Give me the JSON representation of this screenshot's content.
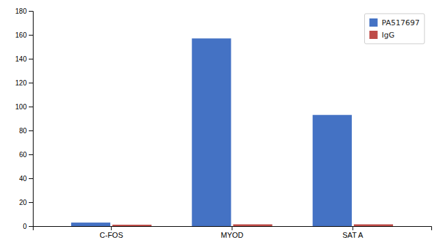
{
  "chart_data": {
    "type": "bar",
    "categories": [
      "C-FOS",
      "MYOD",
      "SAT A"
    ],
    "series": [
      {
        "name": "PA517697",
        "color": "#4472C4",
        "values": [
          3.0,
          157.0,
          93.0
        ]
      },
      {
        "name": "IgG",
        "color": "#BE4B48",
        "values": [
          1.2,
          1.5,
          1.5
        ]
      }
    ],
    "ylim": [
      0,
      180
    ],
    "yticks": [
      0,
      20,
      40,
      60,
      80,
      100,
      120,
      140,
      160,
      180
    ],
    "grid": false,
    "legend": "upper right"
  }
}
